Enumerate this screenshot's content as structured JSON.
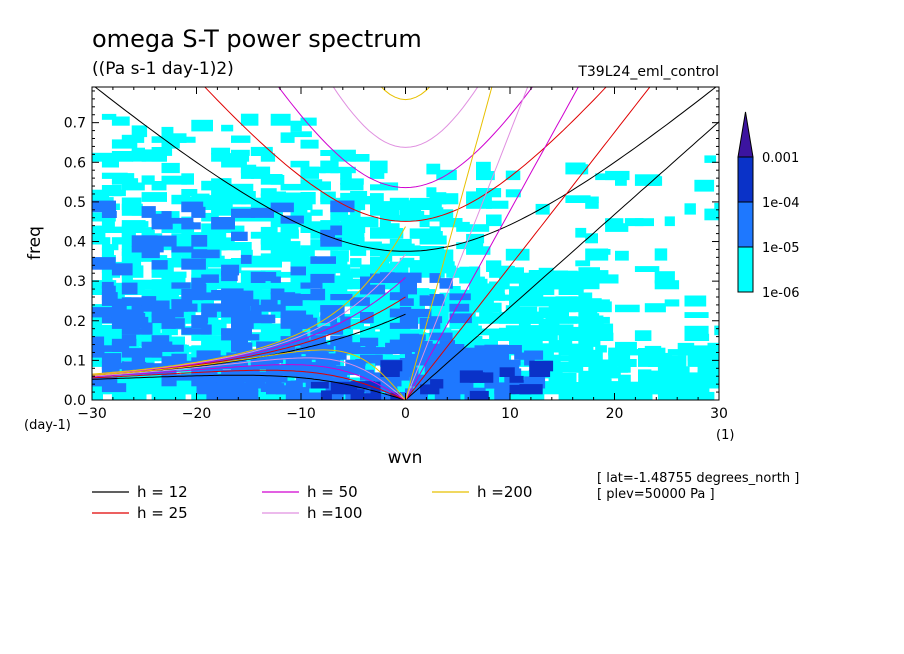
{
  "chart_data": {
    "type": "heatmap",
    "title": "omega S-T power spectrum",
    "units": "((Pa s-1 day-1)2)",
    "run": "T39L24_eml_control",
    "xlabel": "wvn",
    "ylabel": "freq",
    "x_unit": "(1)",
    "y_unit": "(day-1)",
    "xlim": [
      -30,
      30
    ],
    "ylim": [
      0,
      0.79
    ],
    "xticks": [
      -30,
      -20,
      -10,
      0,
      10,
      20,
      30
    ],
    "xtick_labels": [
      "−30",
      "−20",
      "−10",
      "0",
      "10",
      "20",
      "30"
    ],
    "yticks": [
      0,
      0.1,
      0.2,
      0.3,
      0.4,
      0.5,
      0.6,
      0.7
    ],
    "ytick_labels": [
      "0.0",
      "0.1",
      "0.2",
      "0.3",
      "0.4",
      "0.5",
      "0.6",
      "0.7"
    ],
    "contour_levels": [
      {
        "label": "1e-06",
        "color": "#00ffff"
      },
      {
        "label": "1e-05",
        "color": "#1e78ff"
      },
      {
        "label": "1e-04",
        "color": "#0a32c8"
      },
      {
        "label": "0.001",
        "color": "#3c14a0"
      }
    ],
    "colorbar_labels": [
      "1e-06",
      "1e-05",
      "1e-04",
      "0.001"
    ],
    "power_regions": [
      {
        "level": 0,
        "x": [
          -30,
          28
        ],
        "y": [
          0.0,
          0.04
        ],
        "density": 0.9
      },
      {
        "level": 0,
        "x": [
          -30,
          30
        ],
        "y": [
          0.04,
          0.12
        ],
        "density": 0.6
      },
      {
        "level": 0,
        "x": [
          -30,
          18
        ],
        "y": [
          0.12,
          0.32
        ],
        "density": 0.6
      },
      {
        "level": 0,
        "x": [
          -30,
          4
        ],
        "y": [
          0.32,
          0.5
        ],
        "density": 0.45
      },
      {
        "level": 0,
        "x": [
          -30,
          -2
        ],
        "y": [
          0.5,
          0.62
        ],
        "density": 0.22
      },
      {
        "level": 0,
        "x": [
          -30,
          -10
        ],
        "y": [
          0.62,
          0.72
        ],
        "density": 0.1
      },
      {
        "level": 0,
        "x": [
          2,
          30
        ],
        "y": [
          0.12,
          0.6
        ],
        "density": 0.08
      },
      {
        "level": 1,
        "x": [
          -30,
          5
        ],
        "y": [
          0.02,
          0.3
        ],
        "density": 0.3
      },
      {
        "level": 1,
        "x": [
          -30,
          -5
        ],
        "y": [
          0.3,
          0.48
        ],
        "density": 0.1
      },
      {
        "level": 1,
        "x": [
          -20,
          12
        ],
        "y": [
          0.0,
          0.12
        ],
        "density": 0.45
      },
      {
        "level": 2,
        "x": [
          -10,
          12
        ],
        "y": [
          0.0,
          0.08
        ],
        "density": 0.15
      }
    ],
    "series": [
      {
        "name": "h = 12",
        "h": 12,
        "color": "#000000"
      },
      {
        "name": "h = 25",
        "h": 25,
        "color": "#e00000"
      },
      {
        "name": "h = 50",
        "h": 50,
        "color": "#d000d0"
      },
      {
        "name": "h =100",
        "h": 100,
        "color": "#e090e0"
      },
      {
        "name": "h =200",
        "h": 200,
        "color": "#e8c000"
      }
    ],
    "meta": [
      "[ lat=-1.48755 degrees_north ]",
      "[ plev=50000 Pa ]"
    ]
  }
}
